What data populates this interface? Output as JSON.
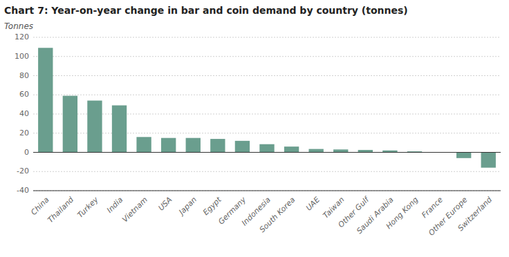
{
  "chart_data": {
    "type": "bar",
    "title": "Chart 7: Year-on-year change in bar and coin demand by country (tonnes)",
    "ylabel": "Tonnes",
    "categories": [
      "China",
      "Thailand",
      "Turkey",
      "India",
      "Vietnam",
      "USA",
      "Japan",
      "Egypt",
      "Germany",
      "Indonesia",
      "South Korea",
      "UAE",
      "Taiwan",
      "Other Gulf",
      "Saudi Arabia",
      "Hong Kong",
      "France",
      "Other Europe",
      "Switzerland"
    ],
    "values": [
      109,
      59,
      54,
      49,
      16,
      15,
      15,
      14,
      12,
      8.5,
      6,
      3.5,
      3,
      2.5,
      2,
      1,
      0,
      -6,
      -16
    ],
    "color": "#6a9e8e",
    "ylim": [
      -40,
      120
    ],
    "yticks": [
      -40,
      -20,
      0,
      20,
      40,
      60,
      80,
      100,
      120
    ],
    "grid": true
  }
}
